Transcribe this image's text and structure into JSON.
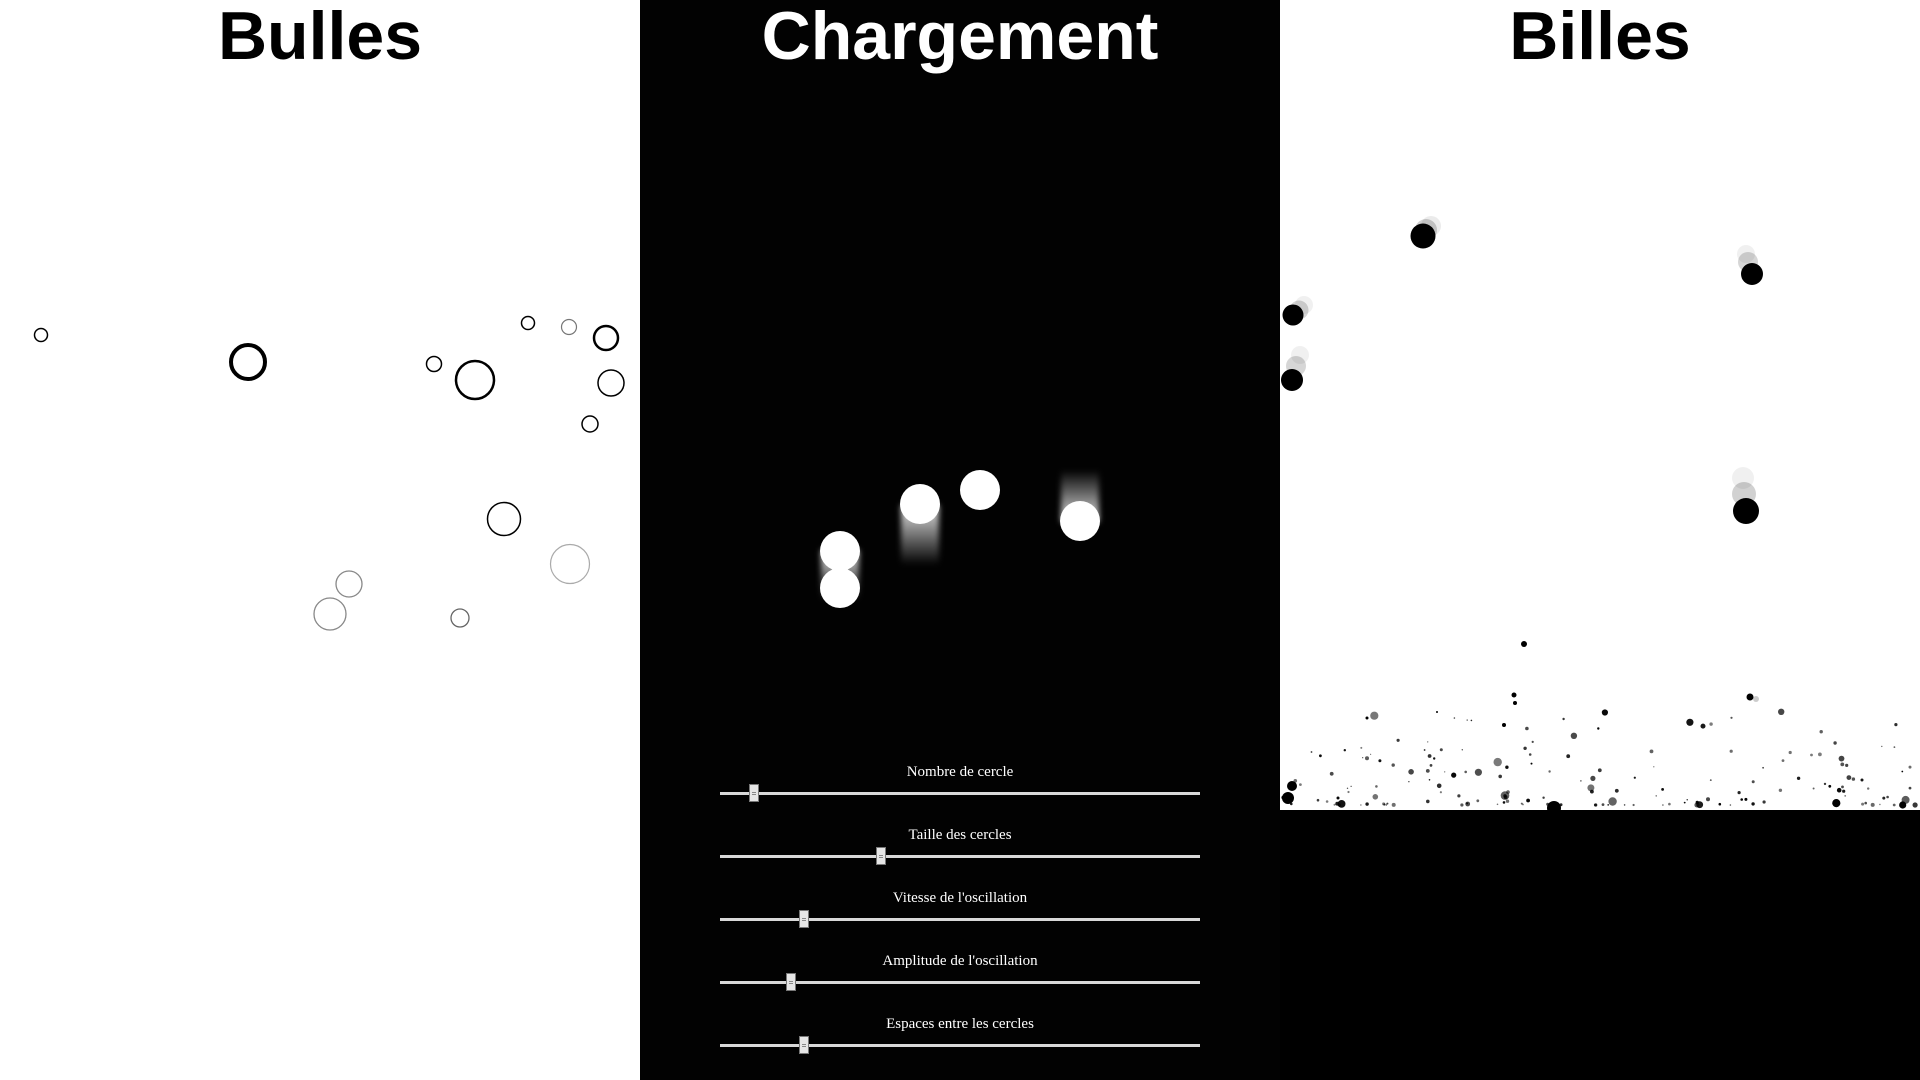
{
  "panels": {
    "bubbles": {
      "title": "Bulles"
    },
    "loading": {
      "title": "Chargement"
    },
    "marbles": {
      "title": "Billes"
    }
  },
  "sliders": [
    {
      "label": "Nombre de cercle",
      "value": 0.07
    },
    {
      "label": "Taille des cercles",
      "value": 0.335
    },
    {
      "label": "Vitesse de l'oscillation",
      "value": 0.175
    },
    {
      "label": "Amplitude de l'oscillation",
      "value": 0.148
    },
    {
      "label": "Espaces entre les cercles",
      "value": 0.175
    }
  ],
  "colors": {
    "light_bg": "#ffffff",
    "dark_bg": "#020202",
    "ink": "#000000",
    "glow": "#ffffff"
  }
}
